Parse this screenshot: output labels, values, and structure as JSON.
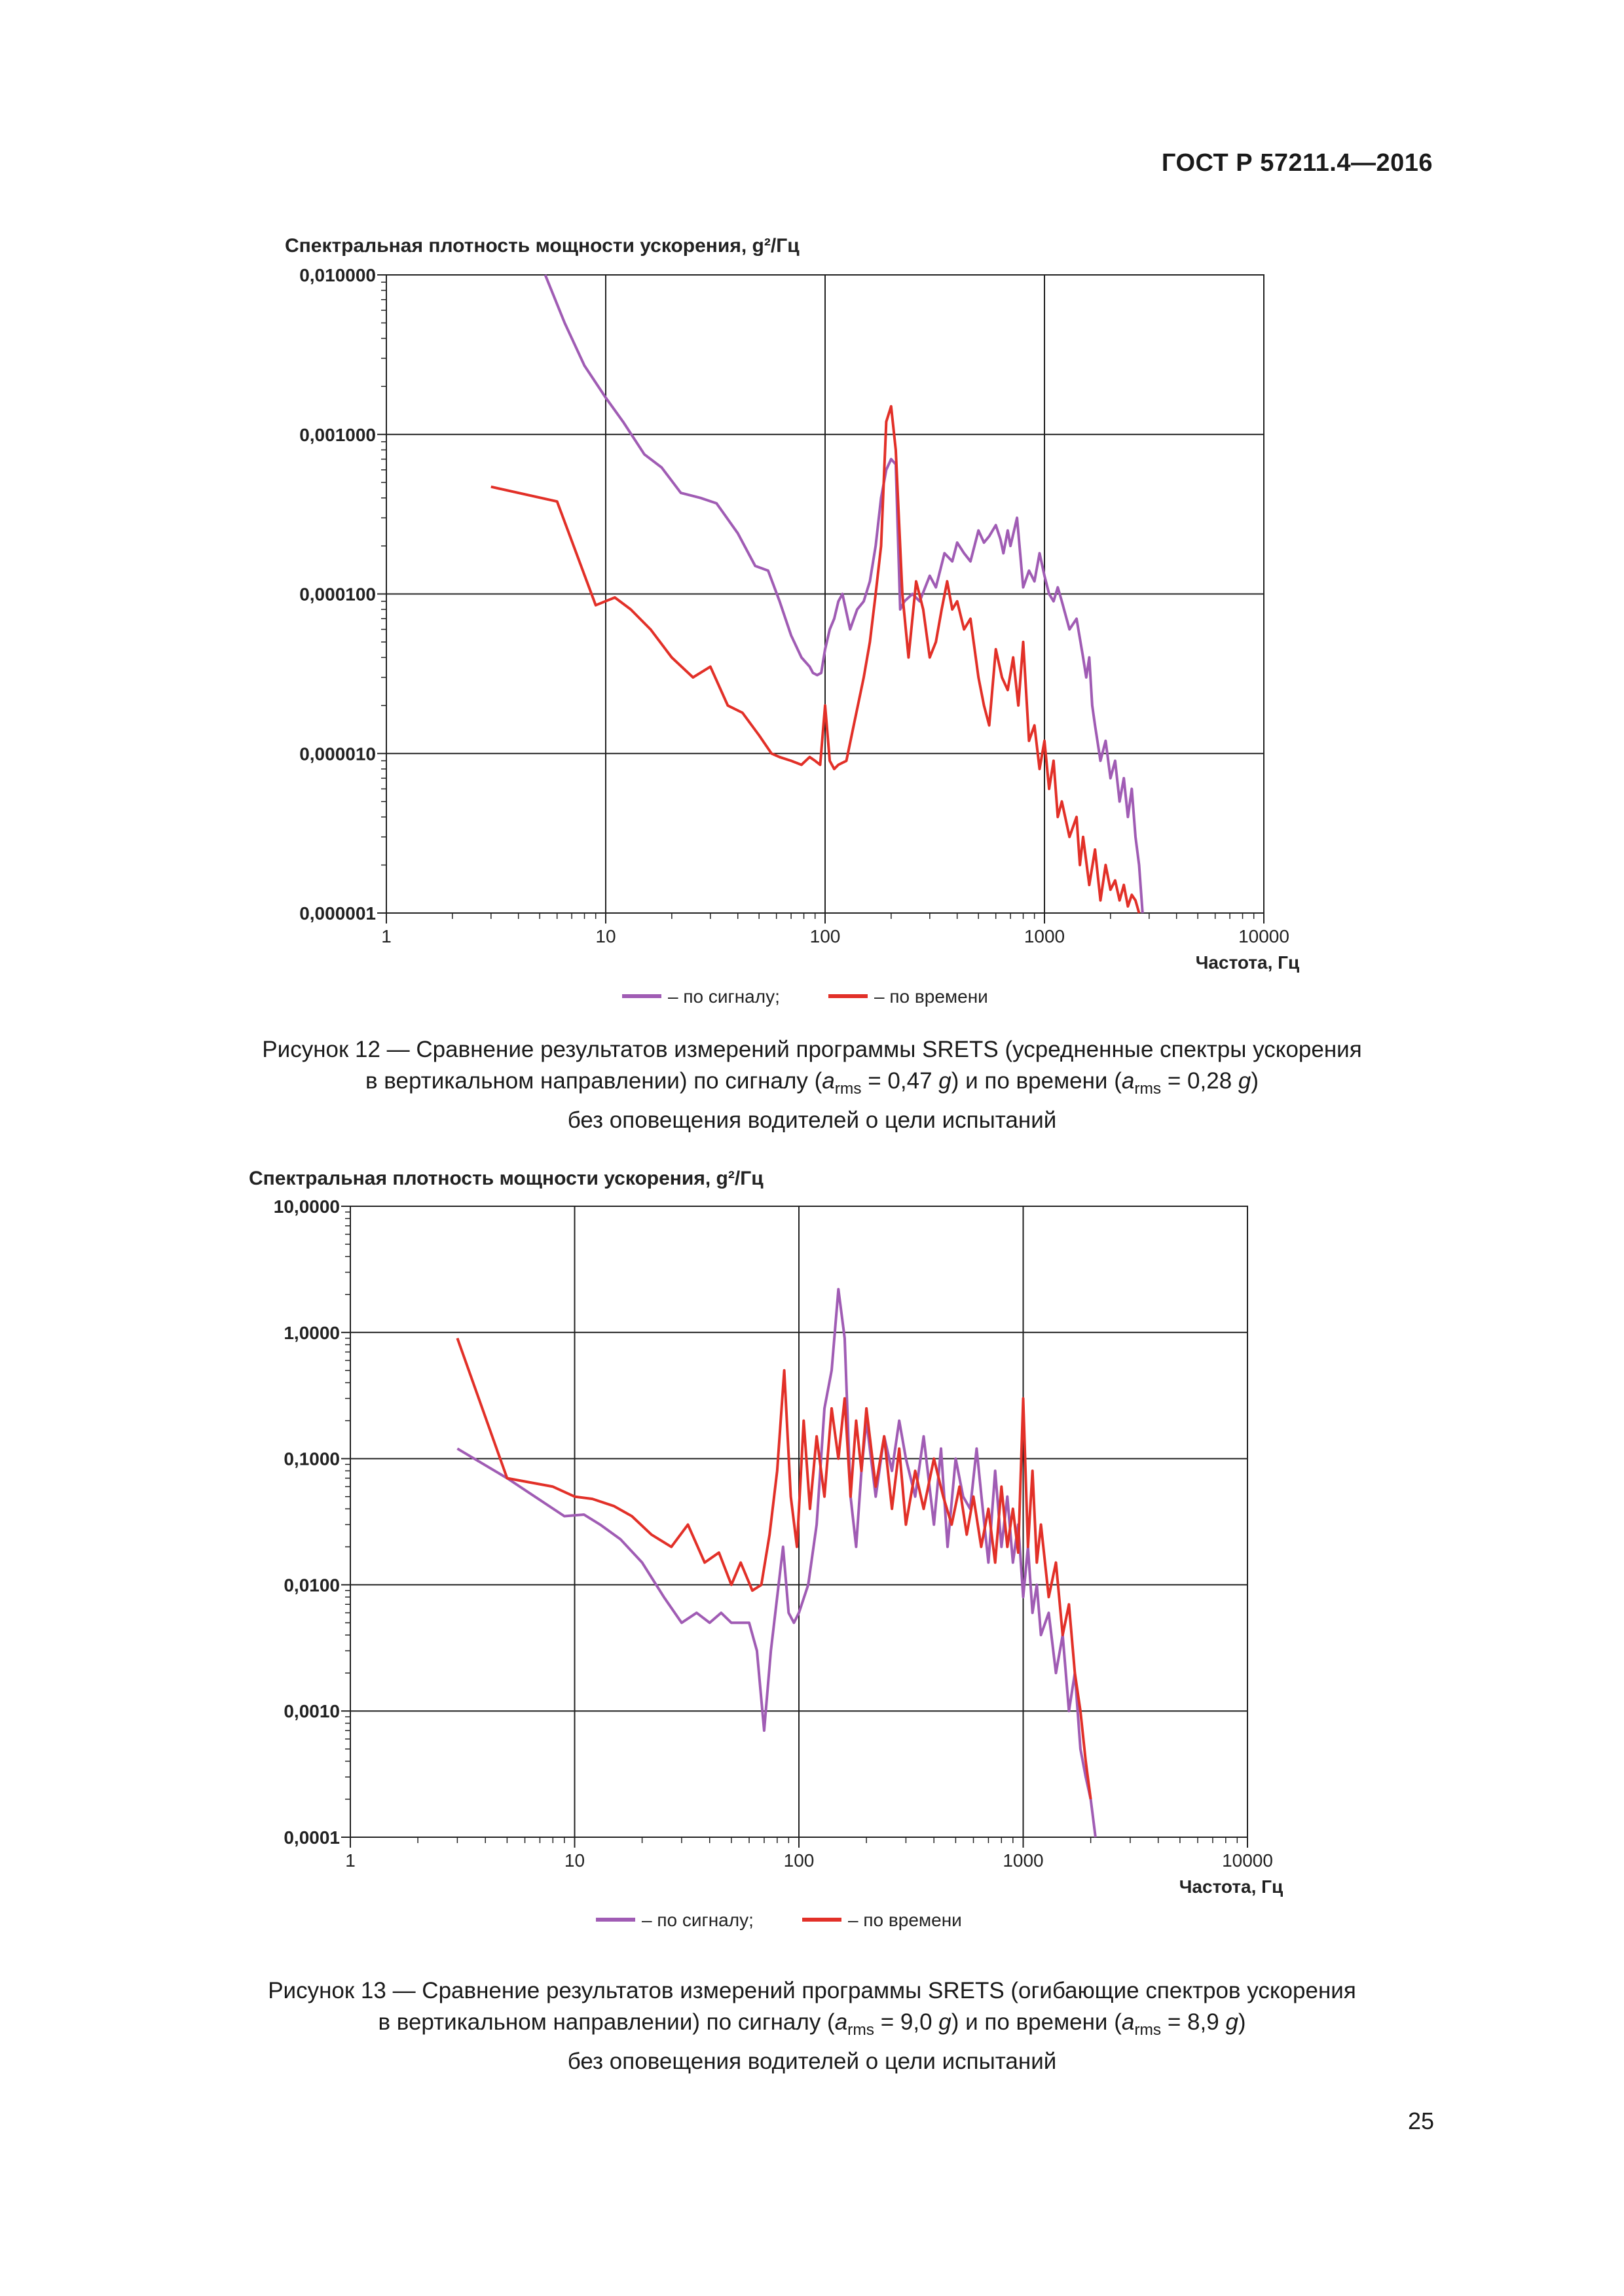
{
  "header": {
    "doc_id": "ГОСТ Р 57211.4—2016"
  },
  "colors": {
    "signal": "#a05cb4",
    "time": "#e23028"
  },
  "chart_data": [
    {
      "type": "line",
      "title": "Спектральная плотность мощности ускорения, g²/Гц",
      "xlabel": "Частота, Гц",
      "ylabel": "Спектральная плотность мощности ускорения, g²/Гц",
      "x_scale": "log",
      "y_scale": "log",
      "xlim": [
        1,
        10000
      ],
      "ylim": [
        1e-06,
        0.01
      ],
      "x_ticks": [
        1,
        10,
        100,
        1000,
        10000
      ],
      "x_tick_labels": [
        "1",
        "10",
        "100",
        "1000",
        "10000"
      ],
      "y_ticks": [
        1e-06,
        1e-05,
        0.0001,
        0.001,
        0.01
      ],
      "y_tick_labels": [
        "0,000001",
        "0,000010",
        "0,000100",
        "0,001000",
        "0,010000"
      ],
      "grid": true,
      "legend": {
        "items": [
          "– по сигналу;",
          "– по времени"
        ],
        "position": "bottom"
      },
      "series": [
        {
          "name": "по сигналу",
          "color": "#a05cb4",
          "x": [
            5.3,
            6.5,
            8,
            10,
            12,
            15,
            18,
            22,
            27,
            32,
            40,
            48,
            55,
            62,
            70,
            78,
            85,
            88,
            92,
            96,
            100,
            105,
            110,
            115,
            120,
            130,
            140,
            150,
            160,
            170,
            180,
            190,
            200,
            210,
            220,
            230,
            250,
            270,
            300,
            320,
            350,
            380,
            400,
            430,
            460,
            500,
            530,
            560,
            600,
            630,
            650,
            680,
            700,
            750,
            800,
            850,
            900,
            950,
            1000,
            1050,
            1100,
            1150,
            1200,
            1300,
            1400,
            1500,
            1550,
            1600,
            1650,
            1700,
            1800,
            1900,
            2000,
            2100,
            2200,
            2300,
            2400,
            2500,
            2600,
            2700,
            2800
          ],
          "y": [
            0.01,
            0.005,
            0.0027,
            0.0017,
            0.0012,
            0.00075,
            0.00062,
            0.00043,
            0.0004,
            0.00037,
            0.00024,
            0.00015,
            0.00014,
            9e-05,
            5.5e-05,
            4e-05,
            3.5e-05,
            3.2e-05,
            3.1e-05,
            3.2e-05,
            4.5e-05,
            6e-05,
            7e-05,
            9e-05,
            0.0001,
            6e-05,
            8e-05,
            9e-05,
            0.00012,
            0.0002,
            0.0004,
            0.0006,
            0.0007,
            0.00065,
            8e-05,
            9e-05,
            0.0001,
            9e-05,
            0.00013,
            0.00011,
            0.00018,
            0.00016,
            0.00021,
            0.00018,
            0.00016,
            0.00025,
            0.00021,
            0.00023,
            0.00027,
            0.00022,
            0.00018,
            0.00025,
            0.0002,
            0.0003,
            0.00011,
            0.00014,
            0.00012,
            0.00018,
            0.00013,
            0.0001,
            9e-05,
            0.00011,
            9e-05,
            6e-05,
            7e-05,
            4e-05,
            3e-05,
            4e-05,
            2e-05,
            1.5e-05,
            9e-06,
            1.2e-05,
            7e-06,
            9e-06,
            5e-06,
            7e-06,
            4e-06,
            6e-06,
            3e-06,
            2e-06,
            1e-06
          ]
        },
        {
          "name": "по времени",
          "color": "#e23028",
          "x": [
            3.0,
            6.0,
            9.0,
            11.0,
            13.0,
            16.0,
            20.0,
            25.0,
            30.0,
            36.0,
            42.0,
            50.0,
            57.0,
            62.0,
            70.0,
            78.0,
            85.0,
            90.0,
            95.0,
            100.0,
            105.0,
            110.0,
            115.0,
            125.0,
            135.0,
            150.0,
            160.0,
            170.0,
            180.0,
            190.0,
            200.0,
            210.0,
            225.0,
            240.0,
            260.0,
            280.0,
            300.0,
            320.0,
            340.0,
            360.0,
            380.0,
            400.0,
            430.0,
            460.0,
            500.0,
            530.0,
            560.0,
            600.0,
            640.0,
            680.0,
            720.0,
            760.0,
            800.0,
            850.0,
            900.0,
            950.0,
            1000.0,
            1050.0,
            1100.0,
            1150.0,
            1200.0,
            1300.0,
            1400.0,
            1450.0,
            1500.0,
            1600.0,
            1700.0,
            1800.0,
            1900.0,
            2000.0,
            2100.0,
            2200.0,
            2300.0,
            2400.0,
            2500.0,
            2600.0,
            2700.0
          ],
          "y": [
            0.00047,
            0.00038,
            8.5e-05,
            9.5e-05,
            8e-05,
            6e-05,
            4e-05,
            3e-05,
            3.5e-05,
            2e-05,
            1.8e-05,
            1.3e-05,
            1e-05,
            9.5e-06,
            9e-06,
            8.5e-06,
            9.5e-06,
            9e-06,
            8.5e-06,
            2e-05,
            9e-06,
            8e-06,
            8.5e-06,
            9e-06,
            1.5e-05,
            3e-05,
            5e-05,
            0.0001,
            0.0002,
            0.0012,
            0.0015,
            0.0008,
            0.0001,
            4e-05,
            0.00012,
            8e-05,
            4e-05,
            5e-05,
            8e-05,
            0.00012,
            8e-05,
            9e-05,
            6e-05,
            7e-05,
            3e-05,
            2e-05,
            1.5e-05,
            4.5e-05,
            3e-05,
            2.5e-05,
            4e-05,
            2e-05,
            5e-05,
            1.2e-05,
            1.5e-05,
            8e-06,
            1.2e-05,
            6e-06,
            9e-06,
            4e-06,
            5e-06,
            3e-06,
            4e-06,
            2e-06,
            3e-06,
            1.5e-06,
            2.5e-06,
            1.2e-06,
            2e-06,
            1.4e-06,
            1.6e-06,
            1.2e-06,
            1.5e-06,
            1.1e-06,
            1.3e-06,
            1.2e-06,
            1e-06
          ]
        }
      ]
    },
    {
      "type": "line",
      "title": "Спектральная плотность мощности ускорения, g²/Гц",
      "xlabel": "Частота, Гц",
      "ylabel": "Спектральная плотность мощности ускорения, g²/Гц",
      "x_scale": "log",
      "y_scale": "log",
      "xlim": [
        1,
        10000
      ],
      "ylim": [
        0.0001,
        10
      ],
      "x_ticks": [
        1,
        10,
        100,
        1000,
        10000
      ],
      "x_tick_labels": [
        "1",
        "10",
        "100",
        "1000",
        "10000"
      ],
      "y_ticks": [
        0.0001,
        0.001,
        0.01,
        0.1,
        1,
        10
      ],
      "y_tick_labels": [
        "0,0001",
        "0,0010",
        "0,0100",
        "0,1000",
        "1,0000",
        "10,0000"
      ],
      "grid": true,
      "legend": {
        "items": [
          "– по сигналу;",
          "– по времени"
        ],
        "position": "bottom"
      },
      "series": [
        {
          "name": "по сигналу",
          "color": "#a05cb4",
          "x": [
            3.0,
            5.0,
            9.0,
            11.0,
            13.0,
            16.0,
            20.0,
            25.0,
            30.0,
            35.0,
            40.0,
            45.0,
            50.0,
            55.0,
            60.0,
            65.0,
            70.0,
            75.0,
            80.0,
            85.0,
            90.0,
            95.0,
            100.0,
            110.0,
            120.0,
            130.0,
            140.0,
            150.0,
            160.0,
            170.0,
            180.0,
            190.0,
            200.0,
            220.0,
            240.0,
            260.0,
            280.0,
            300.0,
            330.0,
            360.0,
            400.0,
            430.0,
            460.0,
            500.0,
            540.0,
            580.0,
            620.0,
            660.0,
            700.0,
            750.0,
            800.0,
            850.0,
            900.0,
            950.0,
            1000.0,
            1050.0,
            1100.0,
            1150.0,
            1200.0,
            1300.0,
            1400.0,
            1500.0,
            1600.0,
            1700.0,
            1800.0,
            1900.0,
            2000.0,
            2100.0
          ],
          "y": [
            0.12,
            0.07,
            0.035,
            0.036,
            0.03,
            0.023,
            0.015,
            0.008,
            0.005,
            0.006,
            0.005,
            0.006,
            0.005,
            0.005,
            0.005,
            0.003,
            0.0007,
            0.003,
            0.008,
            0.02,
            0.006,
            0.005,
            0.006,
            0.01,
            0.03,
            0.25,
            0.5,
            2.2,
            0.9,
            0.05,
            0.02,
            0.08,
            0.2,
            0.05,
            0.15,
            0.08,
            0.2,
            0.1,
            0.05,
            0.15,
            0.03,
            0.12,
            0.02,
            0.1,
            0.05,
            0.04,
            0.12,
            0.04,
            0.015,
            0.08,
            0.02,
            0.05,
            0.015,
            0.03,
            0.008,
            0.02,
            0.006,
            0.01,
            0.004,
            0.006,
            0.002,
            0.004,
            0.001,
            0.002,
            0.0005,
            0.0003,
            0.0002,
            0.0001
          ]
        },
        {
          "name": "по времени",
          "color": "#e23028",
          "x": [
            3.0,
            5.0,
            8.0,
            10.0,
            12.0,
            15.0,
            18.0,
            22.0,
            27.0,
            32.0,
            38.0,
            44.0,
            50.0,
            55.0,
            62.0,
            68.0,
            74.0,
            80.0,
            86.0,
            92.0,
            98.0,
            105.0,
            112.0,
            120.0,
            130.0,
            140.0,
            150.0,
            160.0,
            170.0,
            180.0,
            190.0,
            200.0,
            220.0,
            240.0,
            260.0,
            280.0,
            300.0,
            330.0,
            360.0,
            400.0,
            440.0,
            480.0,
            520.0,
            560.0,
            600.0,
            650.0,
            700.0,
            750.0,
            800.0,
            850.0,
            900.0,
            950.0,
            1000.0,
            1050.0,
            1100.0,
            1150.0,
            1200.0,
            1300.0,
            1400.0,
            1500.0,
            1600.0,
            1700.0,
            1800.0,
            1900.0,
            2000.0
          ],
          "y": [
            0.9,
            0.07,
            0.06,
            0.05,
            0.048,
            0.042,
            0.035,
            0.025,
            0.02,
            0.03,
            0.015,
            0.018,
            0.01,
            0.015,
            0.009,
            0.01,
            0.025,
            0.08,
            0.5,
            0.05,
            0.02,
            0.2,
            0.04,
            0.15,
            0.05,
            0.25,
            0.1,
            0.3,
            0.05,
            0.2,
            0.08,
            0.25,
            0.06,
            0.15,
            0.04,
            0.12,
            0.03,
            0.08,
            0.04,
            0.1,
            0.05,
            0.03,
            0.06,
            0.025,
            0.05,
            0.02,
            0.04,
            0.015,
            0.06,
            0.02,
            0.04,
            0.018,
            0.3,
            0.02,
            0.08,
            0.015,
            0.03,
            0.008,
            0.015,
            0.004,
            0.007,
            0.002,
            0.001,
            0.0004,
            0.0002
          ]
        }
      ]
    }
  ],
  "captions": {
    "fig12": {
      "line1": "Рисунок 12 — Сравнение результатов измерений программы SRETS (усредненные спектры ускорения",
      "line2_pre": "в вертикальном направлении) по сигналу (",
      "a": "a",
      "rms": "rms",
      "line2_mid1": " = 0,47 ",
      "g": "g",
      "line2_mid2": ") и по времени (",
      "line2_mid3": " = 0,28 ",
      "line2_end": ")",
      "line3": "без оповещения водителей о цели испытаний"
    },
    "fig13": {
      "line1": "Рисунок 13 — Сравнение результатов измерений программы SRETS (огибающие спектров ускорения",
      "line2_pre": "в вертикальном направлении) по сигналу (",
      "a": "a",
      "rms": "rms",
      "line2_mid1": " = 9,0 ",
      "g": "g",
      "line2_mid2": ") и по времени (",
      "line2_mid3": " = 8,9 ",
      "line2_end": ")",
      "line3": "без оповещения водителей о цели испытаний"
    }
  },
  "footer": {
    "page_number": "25"
  }
}
